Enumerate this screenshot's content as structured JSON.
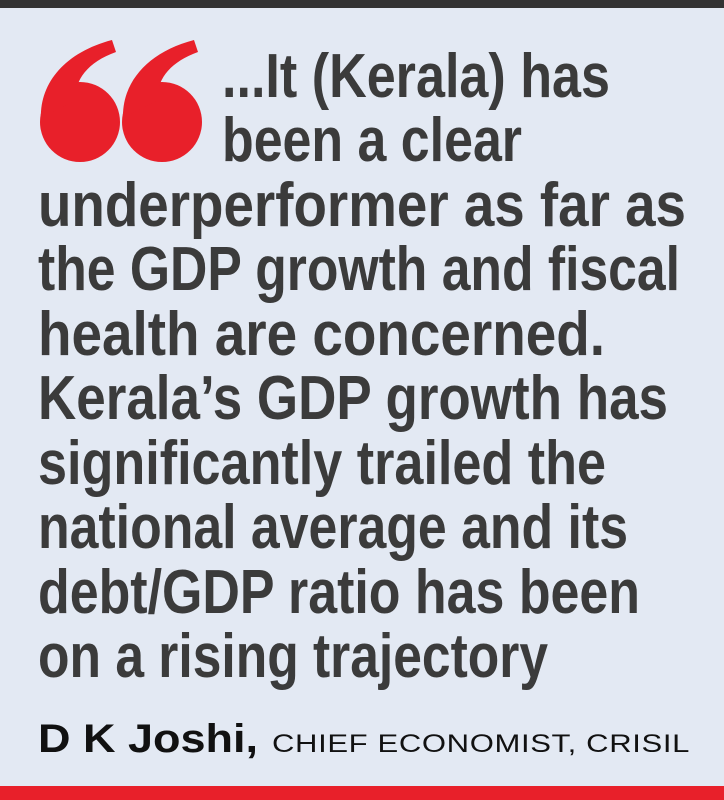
{
  "quote": {
    "lines": [
      "...It (Kerala) has",
      "been a clear",
      "underperformer as far as",
      "the GDP growth and fiscal",
      "health are concerned.",
      "Kerala’s GDP growth has",
      "significantly trailed the",
      "national average and its",
      "debt/GDP ratio has been",
      "on a rising trajectory"
    ]
  },
  "attribution": {
    "name": "D K Joshi,",
    "role": "CHIEF ECONOMIST, CRISIL"
  }
}
